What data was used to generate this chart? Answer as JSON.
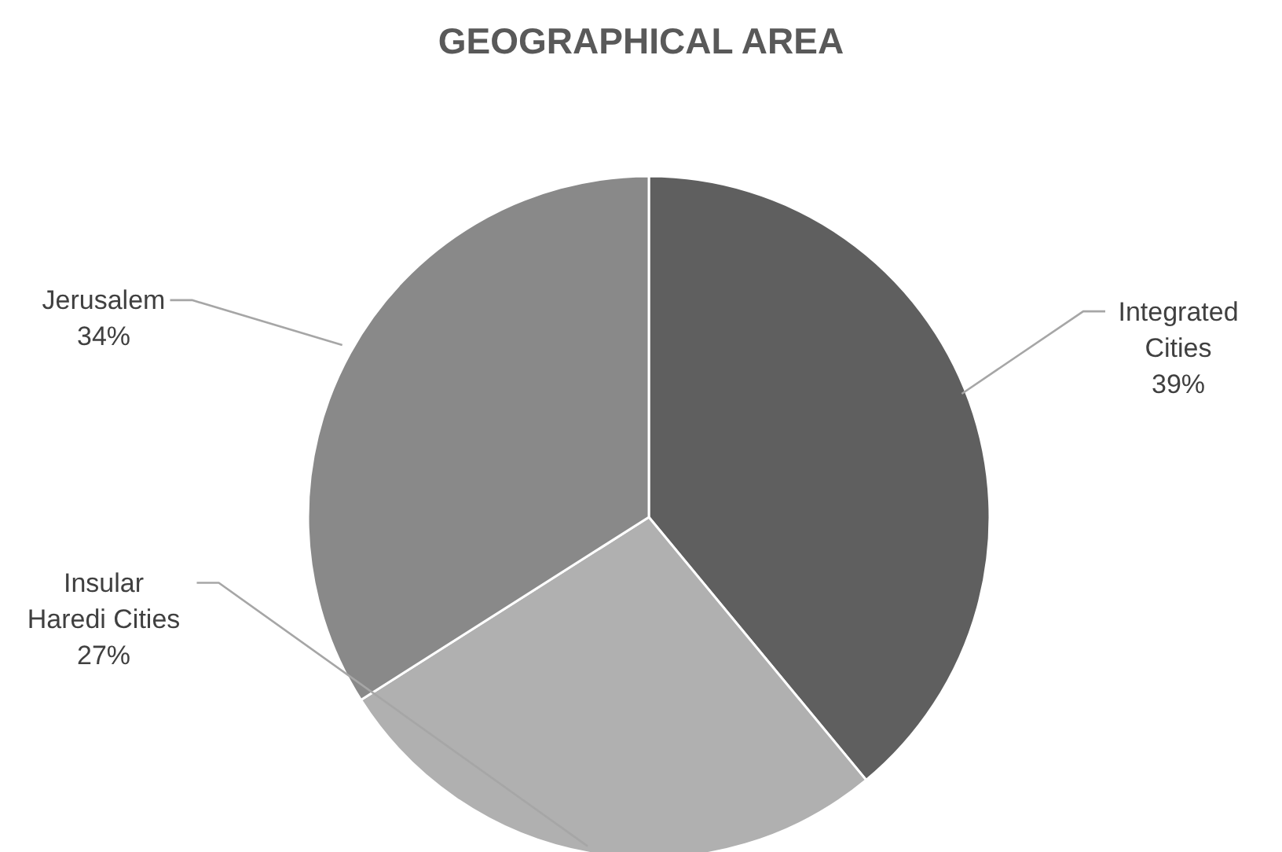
{
  "chart_data": {
    "type": "pie",
    "title": "GEOGRAPHICAL AREA",
    "categories": [
      "Integrated Cities",
      "Insular Haredi Cities",
      "Jerusalem"
    ],
    "values": [
      39,
      27,
      34
    ],
    "value_labels": [
      "39%",
      "27%",
      "34%"
    ],
    "colors": [
      "#5f5f5f",
      "#b0b0b0",
      "#898989"
    ],
    "legend": false
  }
}
